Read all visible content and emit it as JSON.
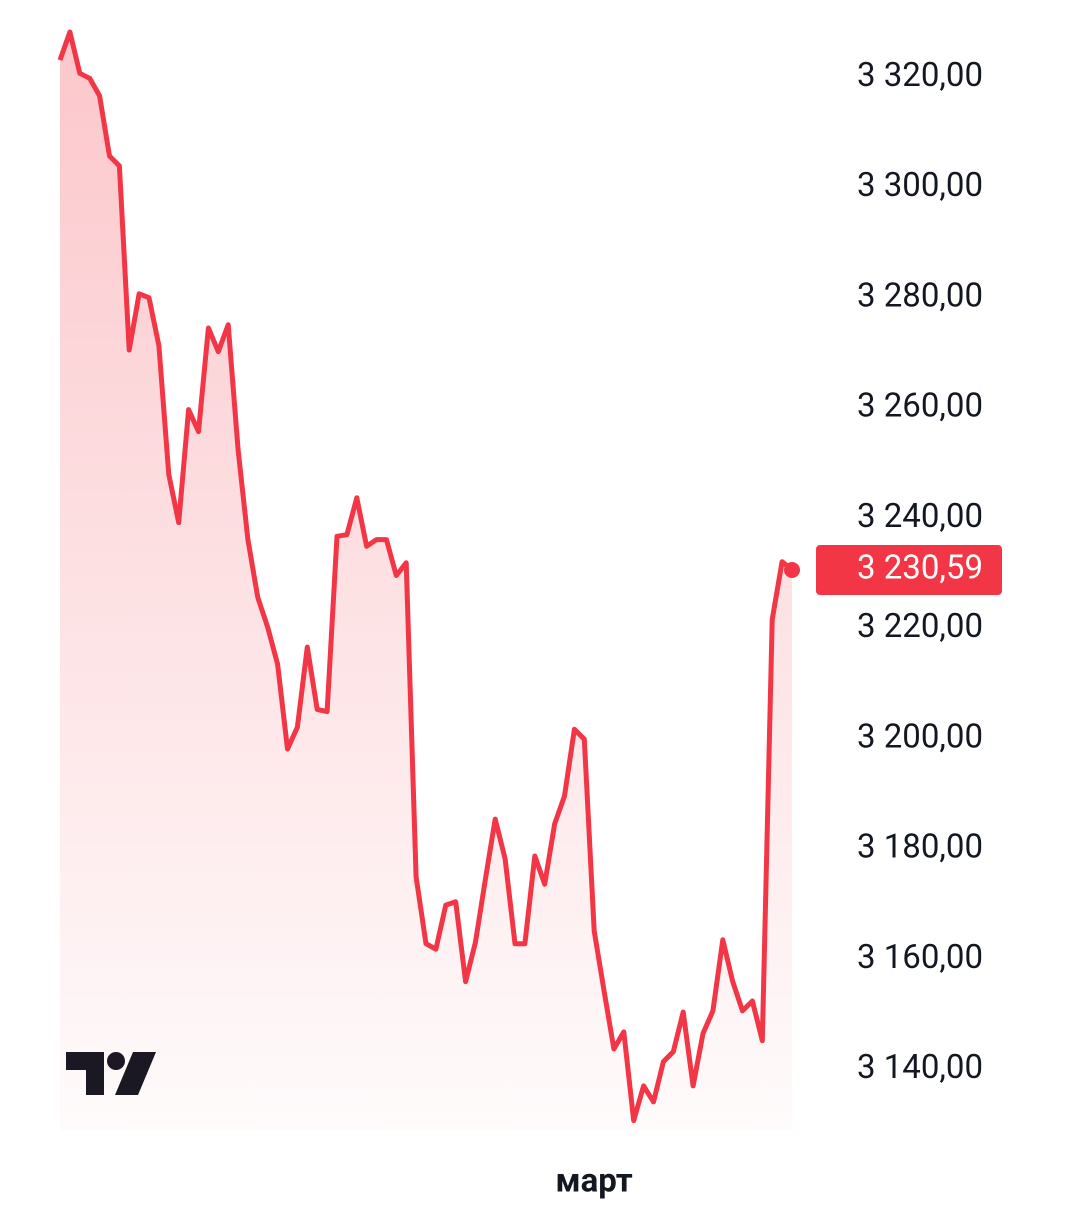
{
  "chart_data": {
    "type": "line",
    "color": "#f23645",
    "categories": [
      null,
      null,
      null,
      null,
      null,
      null,
      null,
      null,
      null,
      null,
      null,
      null,
      null,
      null,
      null,
      null,
      null,
      null,
      null,
      null,
      null,
      null,
      null,
      null,
      null,
      null,
      null,
      null,
      null,
      null,
      null,
      null,
      null,
      null,
      null,
      null,
      null,
      null,
      null,
      null,
      null,
      null,
      null,
      null,
      null,
      null,
      null,
      null,
      null,
      null,
      null,
      null,
      null,
      null,
      "март",
      null,
      null,
      null,
      null,
      null,
      null,
      null,
      null,
      null,
      null,
      null,
      null,
      null,
      null,
      null,
      null,
      null,
      null,
      null,
      null
    ],
    "values": [
      3323.1,
      3328.2,
      3320.7,
      3319.8,
      3316.6,
      3305.7,
      3303.9,
      3270.5,
      3280.7,
      3280.0,
      3271.3,
      3247.9,
      3239.2,
      3259.7,
      3255.7,
      3274.5,
      3270.2,
      3275.1,
      3252.4,
      3236.1,
      3225.6,
      3220.2,
      3213.5,
      3198.1,
      3202.1,
      3216.6,
      3205.3,
      3204.9,
      3236.7,
      3237.0,
      3243.7,
      3234.9,
      3236.1,
      3236.1,
      3229.6,
      3231.9,
      3174.9,
      3162.8,
      3161.8,
      3169.8,
      3170.4,
      3155.9,
      3163.1,
      3174.5,
      3185.4,
      3178.2,
      3162.8,
      3162.8,
      3178.7,
      3173.6,
      3184.5,
      3189.6,
      3201.7,
      3199.9,
      3165.1,
      3154.2,
      3143.7,
      3146.8,
      3130.7,
      3137.0,
      3134.1,
      3141.4,
      3143.2,
      3150.4,
      3137.0,
      3146.5,
      3150.6,
      3163.5,
      3156.0,
      3150.6,
      3152.4,
      3145.2,
      3221.6,
      3232.1,
      3230.59
    ],
    "value_labels": [
      null,
      null,
      null,
      null,
      null,
      null,
      null,
      null,
      null,
      null,
      null,
      null,
      null,
      null,
      null,
      null,
      null,
      null,
      null,
      null,
      null,
      null,
      null,
      null,
      null,
      null,
      null,
      null,
      null,
      null,
      null,
      null,
      null,
      null,
      null,
      null,
      null,
      null,
      null,
      null,
      null,
      null,
      null,
      null,
      null,
      null,
      null,
      null,
      null,
      null,
      null,
      null,
      null,
      null,
      null,
      null,
      null,
      null,
      null,
      null,
      null,
      null,
      null,
      null,
      null,
      null,
      null,
      null,
      null,
      null,
      null,
      null,
      null,
      null,
      "3 230,59"
    ],
    "ylim": [
      3129,
      3334
    ],
    "yticks": [
      {
        "value": 3140,
        "label": "3 140,00"
      },
      {
        "value": 3160,
        "label": "3 160,00"
      },
      {
        "value": 3180,
        "label": "3 180,00"
      },
      {
        "value": 3200,
        "label": "3 200,00"
      },
      {
        "value": 3220,
        "label": "3 220,00"
      },
      {
        "value": 3240,
        "label": "3 240,00"
      },
      {
        "value": 3260,
        "label": "3 260,00"
      },
      {
        "value": 3280,
        "label": "3 280,00"
      },
      {
        "value": 3300,
        "label": "3 300,00"
      },
      {
        "value": 3320,
        "label": "3 320,00"
      }
    ]
  }
}
